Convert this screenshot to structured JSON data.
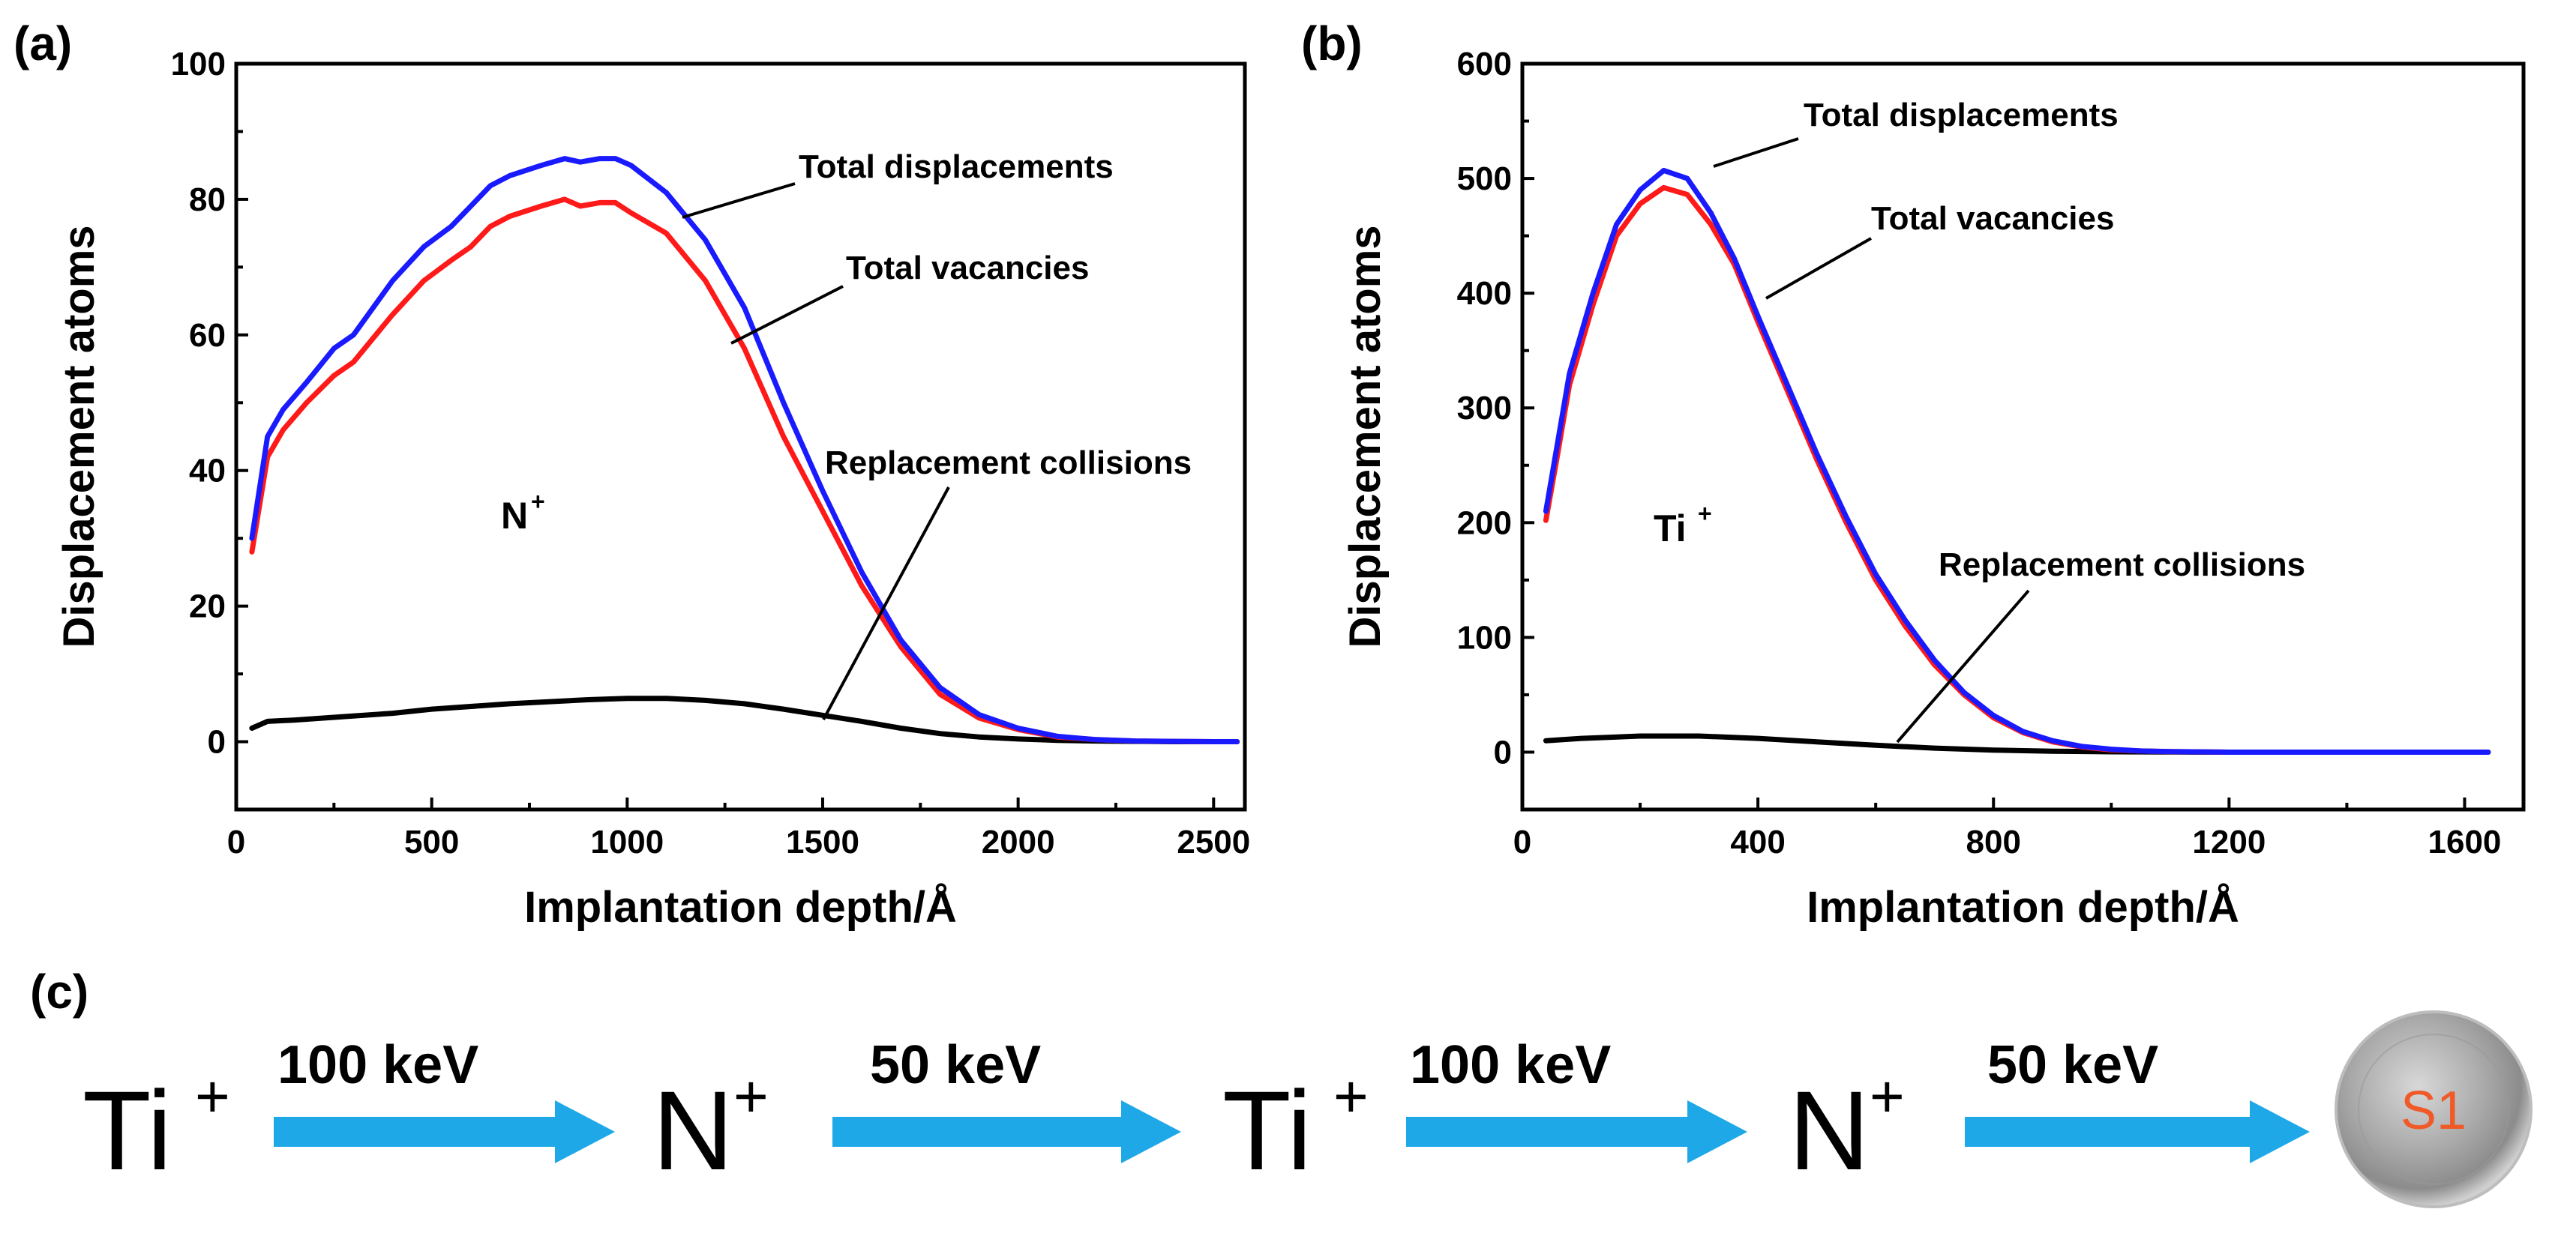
{
  "chart_data": [
    {
      "panel": "(a)",
      "type": "line",
      "ion": "N",
      "ion_charge": "+",
      "xlabel": "Implantation depth/Å",
      "ylabel": "Displacement atoms",
      "xlim": [
        0,
        2580
      ],
      "ylim": [
        -10,
        100
      ],
      "xticks": [
        0,
        500,
        1000,
        1500,
        2000,
        2500
      ],
      "yticks": [
        0,
        20,
        40,
        60,
        80,
        100
      ],
      "series": [
        {
          "name": "Total displacements",
          "color": "#1a1aff",
          "x": [
            40,
            80,
            120,
            180,
            250,
            300,
            400,
            480,
            550,
            600,
            650,
            700,
            780,
            840,
            880,
            930,
            970,
            1010,
            1100,
            1200,
            1300,
            1400,
            1500,
            1600,
            1700,
            1800,
            1900,
            2000,
            2100,
            2200,
            2300,
            2400,
            2500,
            2560
          ],
          "y": [
            30,
            45,
            49,
            53,
            58,
            60,
            68,
            73,
            76,
            79,
            82,
            83.5,
            85,
            86,
            85.5,
            86,
            86,
            85,
            81,
            74,
            64,
            50,
            37,
            25,
            15,
            8,
            4,
            2,
            0.8,
            0.3,
            0.1,
            0.05,
            0,
            0
          ]
        },
        {
          "name": "Total vacancies",
          "color": "#ff1a1a",
          "x": [
            40,
            80,
            120,
            180,
            250,
            300,
            400,
            480,
            550,
            600,
            650,
            700,
            780,
            840,
            880,
            930,
            970,
            1010,
            1100,
            1200,
            1300,
            1400,
            1500,
            1600,
            1700,
            1800,
            1900,
            2000,
            2100,
            2200,
            2300,
            2400,
            2500,
            2560
          ],
          "y": [
            28,
            42,
            46,
            50,
            54,
            56,
            63,
            68,
            71,
            73,
            76,
            77.5,
            79,
            80,
            79,
            79.5,
            79.5,
            78,
            75,
            68,
            58,
            45,
            34,
            23,
            14,
            7,
            3.5,
            1.8,
            0.7,
            0.3,
            0.1,
            0.05,
            0,
            0
          ]
        },
        {
          "name": "Replacement collisions",
          "color": "#000000",
          "x": [
            40,
            80,
            150,
            250,
            400,
            500,
            700,
            900,
            1000,
            1100,
            1200,
            1300,
            1400,
            1500,
            1600,
            1700,
            1800,
            1900,
            2000,
            2100,
            2200,
            2300,
            2400,
            2500,
            2560
          ],
          "y": [
            2,
            3,
            3.2,
            3.6,
            4.2,
            4.8,
            5.6,
            6.2,
            6.4,
            6.4,
            6.1,
            5.6,
            4.8,
            3.9,
            3.0,
            2.0,
            1.2,
            0.7,
            0.4,
            0.2,
            0.1,
            0.05,
            0,
            0,
            0
          ]
        }
      ]
    },
    {
      "panel": "(b)",
      "type": "line",
      "ion": "Ti",
      "ion_charge": "+",
      "xlabel": "Implantation depth/Å",
      "ylabel": "Displacement atoms",
      "xlim": [
        0,
        1700
      ],
      "ylim": [
        -50,
        600
      ],
      "xticks": [
        0,
        400,
        800,
        1200,
        1600
      ],
      "yticks": [
        0,
        100,
        200,
        300,
        400,
        500,
        600
      ],
      "series": [
        {
          "name": "Total displacements",
          "color": "#1a1aff",
          "x": [
            40,
            60,
            80,
            120,
            160,
            200,
            240,
            280,
            320,
            360,
            400,
            450,
            500,
            550,
            600,
            650,
            700,
            750,
            800,
            850,
            900,
            950,
            1000,
            1050,
            1100,
            1200,
            1300,
            1400,
            1500,
            1640
          ],
          "y": [
            210,
            270,
            330,
            400,
            460,
            490,
            507,
            500,
            470,
            430,
            380,
            320,
            260,
            205,
            155,
            115,
            80,
            52,
            32,
            18,
            10,
            5,
            2.5,
            1,
            0.5,
            0,
            0,
            0,
            0,
            0
          ]
        },
        {
          "name": "Total vacancies",
          "color": "#ff1a1a",
          "x": [
            40,
            60,
            80,
            120,
            160,
            200,
            240,
            280,
            320,
            360,
            400,
            450,
            500,
            550,
            600,
            650,
            700,
            750,
            800,
            850,
            900,
            950,
            1000,
            1050,
            1100,
            1200,
            1300,
            1400,
            1500,
            1640
          ],
          "y": [
            202,
            260,
            320,
            390,
            450,
            478,
            492,
            486,
            460,
            425,
            375,
            315,
            255,
            200,
            150,
            110,
            76,
            50,
            30,
            17,
            9,
            4.5,
            2,
            1,
            0.4,
            0,
            0,
            0,
            0,
            0
          ]
        },
        {
          "name": "Replacement collisions",
          "color": "#000000",
          "x": [
            40,
            100,
            200,
            300,
            400,
            500,
            600,
            700,
            800,
            900,
            1000,
            1100,
            1200,
            1400,
            1640
          ],
          "y": [
            10,
            12,
            14,
            14,
            12,
            9,
            6,
            3.5,
            1.8,
            0.8,
            0.3,
            0.1,
            0,
            0,
            0
          ]
        }
      ]
    }
  ],
  "sequence": {
    "panel_label": "(c)",
    "steps": [
      {
        "ion": "Ti",
        "charge": "+",
        "energy": "100 keV"
      },
      {
        "ion": "N",
        "charge": "+",
        "energy": "50 keV"
      },
      {
        "ion": "Ti",
        "charge": "+",
        "energy": "100 keV"
      },
      {
        "ion": "N",
        "charge": "+",
        "energy": "50 keV"
      }
    ],
    "sample_label": "S1",
    "arrow_color": "#1fa8e8"
  }
}
